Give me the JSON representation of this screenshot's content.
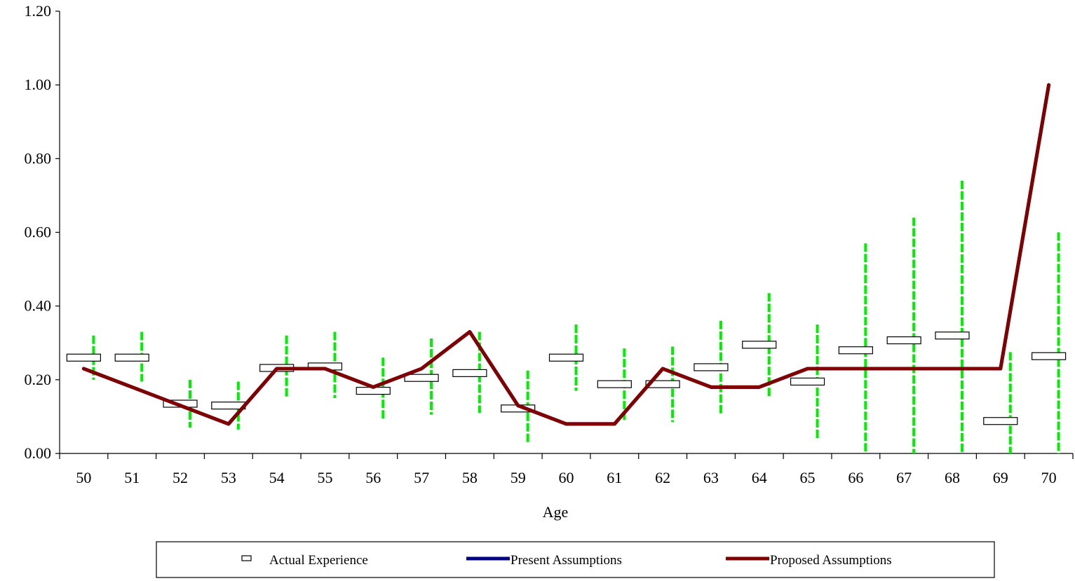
{
  "chart_data": {
    "type": "line",
    "title": "",
    "xlabel": "Age",
    "ylabel": "",
    "ylim": [
      0,
      1.2
    ],
    "y_ticks": [
      "0.00",
      "0.20",
      "0.40",
      "0.60",
      "0.80",
      "1.00",
      "1.20"
    ],
    "categories": [
      "50",
      "51",
      "52",
      "53",
      "54",
      "55",
      "56",
      "57",
      "58",
      "59",
      "60",
      "61",
      "62",
      "63",
      "64",
      "65",
      "66",
      "67",
      "68",
      "69",
      "70"
    ],
    "grid": false,
    "legend_position": "bottom",
    "series": [
      {
        "name": "Actual Experience",
        "kind": "marker",
        "color": "#000000",
        "values": [
          0.26,
          0.26,
          0.135,
          0.13,
          0.232,
          0.236,
          0.17,
          0.205,
          0.218,
          0.122,
          0.26,
          0.188,
          0.188,
          0.234,
          0.295,
          0.195,
          0.28,
          0.307,
          0.32,
          0.088,
          0.264
        ]
      },
      {
        "name": "Present Assumptions",
        "kind": "line",
        "color": "#000080",
        "values": [
          0.23,
          0.18,
          0.13,
          0.08,
          0.23,
          0.23,
          0.18,
          0.23,
          0.33,
          0.13,
          0.08,
          0.08,
          0.23,
          0.18,
          0.18,
          0.23,
          0.23,
          0.23,
          0.23,
          0.23,
          1.0
        ]
      },
      {
        "name": "Proposed Assumptions",
        "kind": "line",
        "color": "#800000",
        "values": [
          0.23,
          0.18,
          0.13,
          0.08,
          0.23,
          0.23,
          0.18,
          0.23,
          0.33,
          0.13,
          0.08,
          0.08,
          0.23,
          0.18,
          0.18,
          0.23,
          0.23,
          0.23,
          0.23,
          0.23,
          1.0
        ]
      }
    ],
    "error_bars": {
      "color": "#00ee00",
      "low": [
        0.2,
        0.195,
        0.07,
        0.065,
        0.15,
        0.15,
        0.09,
        0.105,
        0.11,
        0.028,
        0.17,
        0.09,
        0.085,
        0.108,
        0.155,
        0.04,
        0.0,
        0.0,
        0.0,
        0.0,
        0.0
      ],
      "high": [
        0.32,
        0.33,
        0.2,
        0.195,
        0.32,
        0.33,
        0.26,
        0.312,
        0.33,
        0.225,
        0.35,
        0.285,
        0.29,
        0.36,
        0.435,
        0.35,
        0.57,
        0.64,
        0.74,
        0.275,
        0.6
      ]
    }
  }
}
